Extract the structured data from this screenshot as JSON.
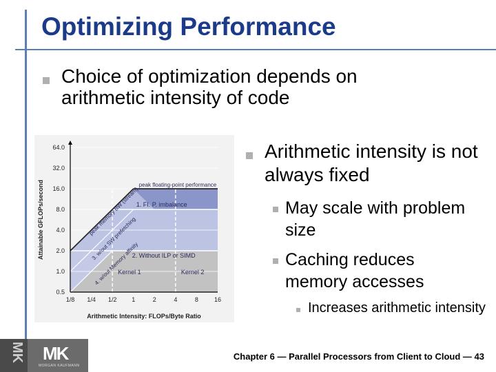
{
  "slide": {
    "title": "Optimizing Performance",
    "bullet1": "Choice of optimization depends on arithmetic intensity of code",
    "bullet2": "Arithmetic intensity is not always fixed",
    "sub1": "May scale with problem size",
    "sub2": "Caching reduces memory accesses",
    "subsub1": "Increases arithmetic intensity",
    "footer": "Chapter 6 — Parallel Processors from Client to Cloud — 43"
  },
  "logo": {
    "text": "MK",
    "small": "MORGAN KAUFMANN"
  },
  "chart_data": {
    "type": "line",
    "xlabel": "Arithmetic Intensity: FLOPs/Byte Ratio",
    "ylabel": "Attainable GFLOPs/second",
    "x_ticks": [
      "1/8",
      "1/4",
      "1/2",
      "1",
      "2",
      "4",
      "8",
      "16"
    ],
    "y_ticks": [
      "64.0",
      "32.0",
      "16.0",
      "8.0",
      "4.0",
      "2.0",
      "1.0",
      "0.5"
    ],
    "scale": "log2",
    "xlim": [
      0.125,
      16
    ],
    "ylim": [
      0.5,
      64
    ],
    "ceilings": [
      {
        "label": "peak floating-point performance",
        "y": 16
      },
      {
        "label": "1. FI. P. imbalance",
        "y": 8
      },
      {
        "label": "2. Without ILP or SIMD",
        "y": 2
      }
    ],
    "diagonals": [
      {
        "label": "peak memory BW (stream)",
        "bw": 16
      },
      {
        "label": "3. w/out SW prefetching",
        "bw": 8
      },
      {
        "label": "4. w/out Memory affinity",
        "bw": 4
      }
    ],
    "kernels": [
      {
        "label": "Kernel 1",
        "x": 0.5
      },
      {
        "label": "Kernel 2",
        "x": 4
      }
    ],
    "colors": {
      "upper_region": "#8a95c9",
      "mid_region": "#bcc3e3",
      "lower_region": "#c2c2c2",
      "text": "#2a2a5a"
    }
  }
}
